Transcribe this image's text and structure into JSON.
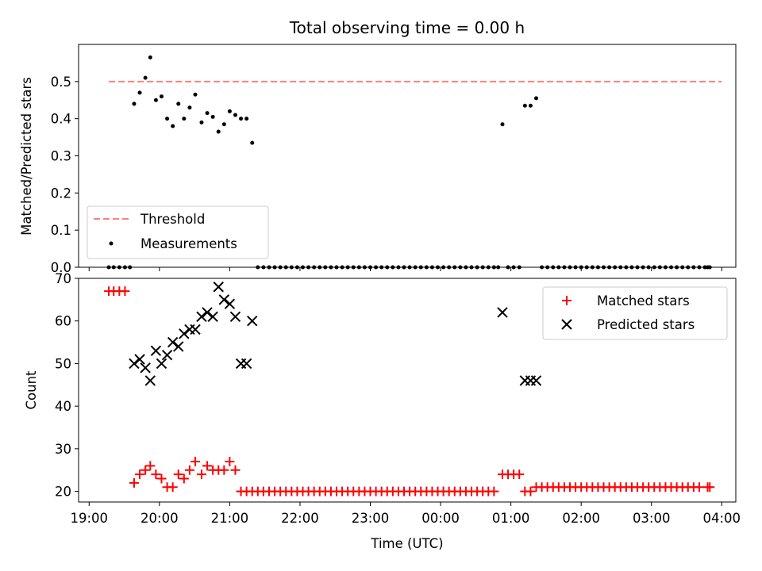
{
  "chart_data": {
    "title": "Total observing time = 0.00 h",
    "xlabel": "Time (UTC)",
    "x_unit": "hours (UTC, continuing past midnight as 24+)",
    "x_ticks": [
      {
        "value": 19,
        "label": "19:00"
      },
      {
        "value": 20,
        "label": "20:00"
      },
      {
        "value": 21,
        "label": "21:00"
      },
      {
        "value": 22,
        "label": "22:00"
      },
      {
        "value": 23,
        "label": "23:00"
      },
      {
        "value": 24,
        "label": "00:00"
      },
      {
        "value": 25,
        "label": "01:00"
      },
      {
        "value": 26,
        "label": "02:00"
      },
      {
        "value": 27,
        "label": "03:00"
      },
      {
        "value": 28,
        "label": "04:00"
      }
    ],
    "xlim": [
      18.85,
      28.2
    ],
    "panels": [
      {
        "type": "scatter",
        "ylabel": "Matched/Predicted stars",
        "ylim": [
          0,
          0.6
        ],
        "y_ticks": [
          0.0,
          0.1,
          0.2,
          0.3,
          0.4,
          0.5
        ],
        "grid": false,
        "legend": {
          "position": "lower-left",
          "entries": [
            "Threshold",
            "Measurements"
          ]
        },
        "threshold": {
          "name": "Threshold",
          "y": 0.5,
          "x_start": 19.28,
          "x_end": 28.0,
          "color": "#ff7f7f",
          "style": "dashed"
        },
        "series": [
          {
            "name": "Measurements",
            "color": "#000000",
            "marker": "dot",
            "x": [
              19.28,
              19.35,
              19.43,
              19.51,
              19.58,
              19.64,
              19.72,
              19.8,
              19.87,
              19.95,
              20.03,
              20.11,
              20.19,
              20.27,
              20.35,
              20.43,
              20.51,
              20.6,
              20.68,
              20.76,
              20.84,
              20.92,
              21.0,
              21.08,
              21.16,
              21.24,
              21.32,
              21.4,
              21.48,
              21.56,
              21.64,
              21.72,
              21.8,
              21.88,
              21.96,
              22.04,
              22.12,
              22.2,
              22.28,
              22.36,
              22.44,
              22.52,
              22.6,
              22.68,
              22.76,
              22.84,
              22.92,
              23.0,
              23.08,
              23.16,
              23.24,
              23.32,
              23.4,
              23.48,
              23.56,
              23.64,
              23.72,
              23.8,
              23.88,
              23.96,
              24.04,
              24.12,
              24.2,
              24.28,
              24.36,
              24.44,
              24.52,
              24.6,
              24.68,
              24.76,
              24.82,
              24.88,
              24.96,
              25.04,
              25.12,
              25.2,
              25.28,
              25.36,
              25.44,
              25.52,
              25.6,
              25.68,
              25.76,
              25.84,
              25.92,
              26.0,
              26.08,
              26.16,
              26.24,
              26.32,
              26.4,
              26.48,
              26.56,
              26.64,
              26.72,
              26.8,
              26.88,
              26.96,
              27.04,
              27.12,
              27.2,
              27.28,
              27.36,
              27.44,
              27.52,
              27.6,
              27.68,
              27.76,
              27.8,
              27.83
            ],
            "y": [
              0,
              0,
              0,
              0,
              0,
              0.44,
              0.47,
              0.51,
              0.565,
              0.45,
              0.46,
              0.4,
              0.38,
              0.44,
              0.4,
              0.43,
              0.465,
              0.39,
              0.415,
              0.405,
              0.365,
              0.385,
              0.42,
              0.41,
              0.4,
              0.4,
              0.335,
              0,
              0,
              0,
              0,
              0,
              0,
              0,
              0,
              0,
              0,
              0,
              0,
              0,
              0,
              0,
              0,
              0,
              0,
              0,
              0,
              0,
              0,
              0,
              0,
              0,
              0,
              0,
              0,
              0,
              0,
              0,
              0,
              0,
              0,
              0,
              0,
              0,
              0,
              0,
              0,
              0,
              0,
              0,
              0,
              0.385,
              0,
              0,
              0,
              0.435,
              0.435,
              0.455,
              0,
              0,
              0,
              0,
              0,
              0,
              0,
              0,
              0,
              0,
              0,
              0,
              0,
              0,
              0,
              0,
              0,
              0,
              0,
              0,
              0,
              0,
              0,
              0,
              0,
              0,
              0,
              0,
              0,
              0,
              0,
              0
            ]
          }
        ]
      },
      {
        "type": "scatter",
        "ylabel": "Count",
        "ylim": [
          17.5,
          70
        ],
        "y_ticks": [
          20,
          30,
          40,
          50,
          60,
          70
        ],
        "grid": false,
        "legend": {
          "position": "upper-right",
          "entries": [
            "Matched stars",
            "Predicted stars"
          ]
        },
        "series": [
          {
            "name": "Matched stars",
            "color": "#ff0000",
            "marker": "plus",
            "x": [
              19.28,
              19.35,
              19.43,
              19.51,
              19.64,
              19.72,
              19.8,
              19.87,
              19.95,
              20.03,
              20.11,
              20.19,
              20.27,
              20.35,
              20.43,
              20.51,
              20.6,
              20.68,
              20.76,
              20.84,
              20.92,
              21.0,
              21.08,
              21.16,
              21.24,
              21.32,
              21.4,
              21.48,
              21.56,
              21.64,
              21.72,
              21.8,
              21.88,
              21.96,
              22.04,
              22.12,
              22.2,
              22.28,
              22.36,
              22.44,
              22.52,
              22.6,
              22.68,
              22.76,
              22.84,
              22.92,
              23.0,
              23.08,
              23.16,
              23.24,
              23.32,
              23.4,
              23.48,
              23.56,
              23.64,
              23.72,
              23.8,
              23.88,
              23.96,
              24.04,
              24.12,
              24.2,
              24.28,
              24.36,
              24.44,
              24.52,
              24.6,
              24.68,
              24.76,
              24.88,
              24.96,
              25.04,
              25.12,
              25.2,
              25.28,
              25.36,
              25.44,
              25.52,
              25.6,
              25.68,
              25.76,
              25.84,
              25.92,
              26.0,
              26.08,
              26.16,
              26.24,
              26.32,
              26.4,
              26.48,
              26.56,
              26.64,
              26.72,
              26.8,
              26.88,
              26.96,
              27.04,
              27.12,
              27.2,
              27.28,
              27.36,
              27.44,
              27.52,
              27.6,
              27.68,
              27.8,
              27.83
            ],
            "y": [
              67,
              67,
              67,
              67,
              22,
              24,
              25,
              26,
              24,
              23,
              21,
              21,
              24,
              23,
              25,
              27,
              24,
              26,
              25,
              25,
              25,
              27,
              25,
              20,
              20,
              20,
              20,
              20,
              20,
              20,
              20,
              20,
              20,
              20,
              20,
              20,
              20,
              20,
              20,
              20,
              20,
              20,
              20,
              20,
              20,
              20,
              20,
              20,
              20,
              20,
              20,
              20,
              20,
              20,
              20,
              20,
              20,
              20,
              20,
              20,
              20,
              20,
              20,
              20,
              20,
              20,
              20,
              20,
              20,
              24,
              24,
              24,
              24,
              20,
              20,
              21,
              21,
              21,
              21,
              21,
              21,
              21,
              21,
              21,
              21,
              21,
              21,
              21,
              21,
              21,
              21,
              21,
              21,
              21,
              21,
              21,
              21,
              21,
              21,
              21,
              21,
              21,
              21,
              21,
              21,
              21,
              21
            ]
          },
          {
            "name": "Predicted stars",
            "color": "#000000",
            "marker": "x",
            "x": [
              19.64,
              19.72,
              19.8,
              19.87,
              19.95,
              20.03,
              20.11,
              20.19,
              20.27,
              20.35,
              20.43,
              20.51,
              20.6,
              20.68,
              20.76,
              20.84,
              20.92,
              21.0,
              21.08,
              21.16,
              21.24,
              21.32,
              24.88,
              25.2,
              25.28,
              25.36
            ],
            "y": [
              50,
              51,
              49,
              46,
              53,
              50,
              52,
              55,
              54,
              57,
              58,
              58,
              61,
              62,
              61,
              68,
              65,
              64,
              61,
              50,
              50,
              60,
              62,
              46,
              46,
              46
            ]
          }
        ]
      }
    ]
  }
}
